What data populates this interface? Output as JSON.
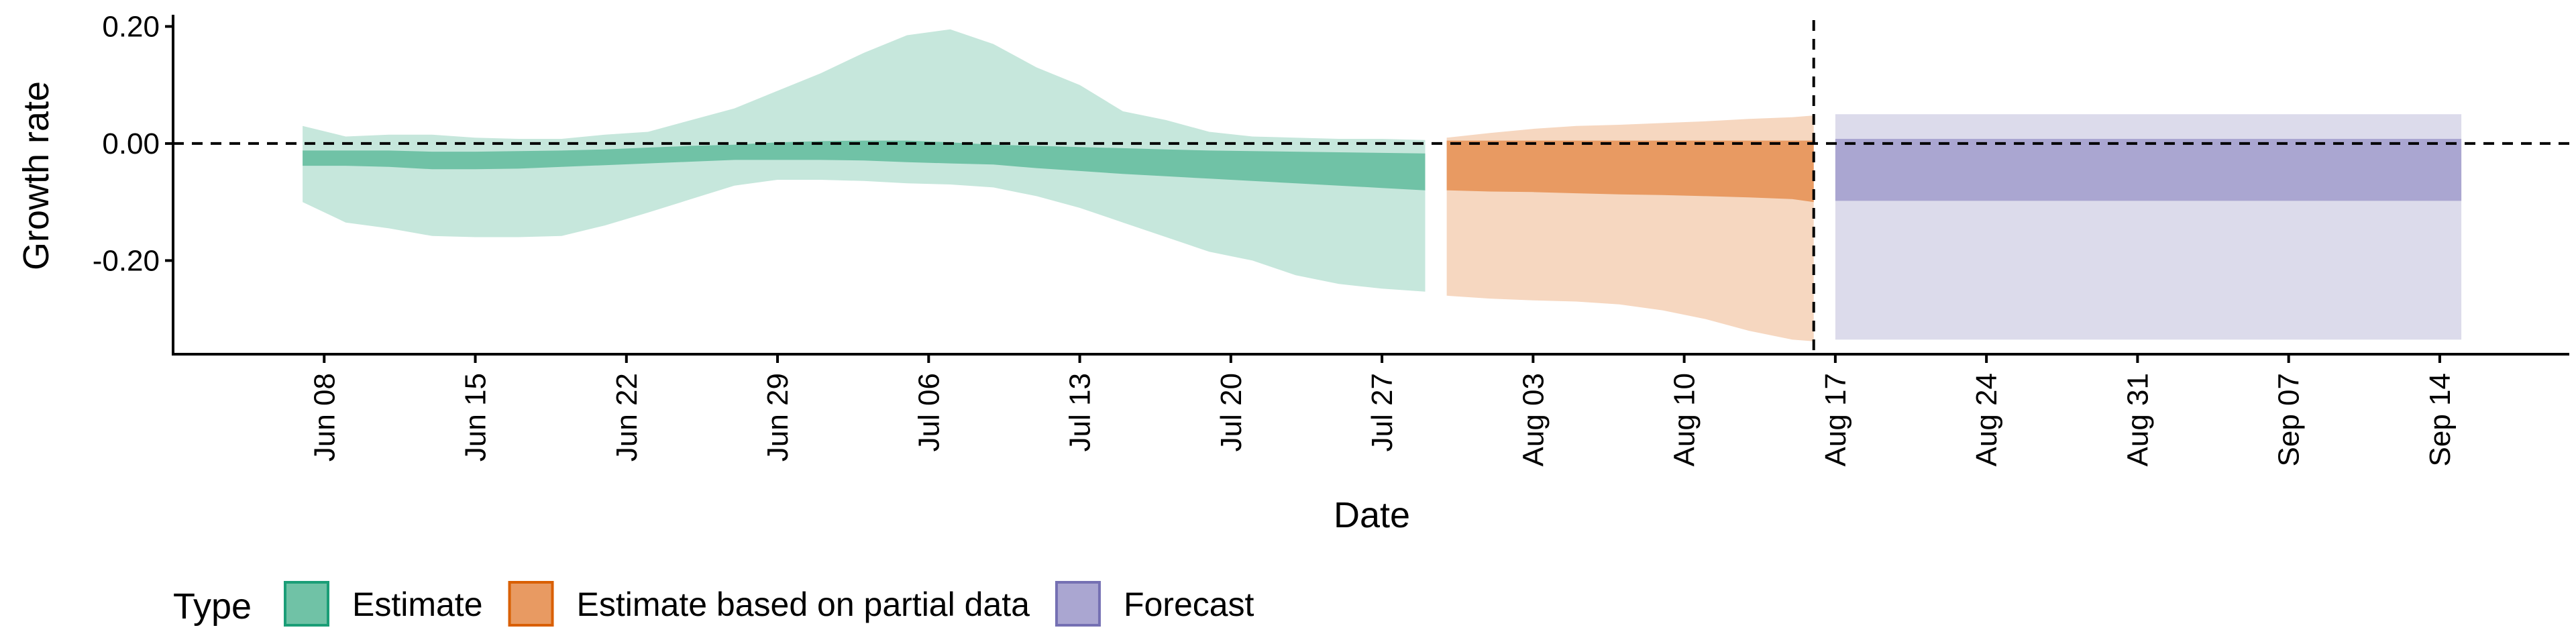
{
  "chart_data": {
    "type": "area",
    "xlabel": "Date",
    "ylabel": "Growth rate",
    "x_ticks": [
      "Jun 08",
      "Jun 15",
      "Jun 22",
      "Jun 29",
      "Jul 06",
      "Jul 13",
      "Jul 20",
      "Jul 27",
      "Aug 03",
      "Aug 10",
      "Aug 17",
      "Aug 24",
      "Aug 31",
      "Sep 07",
      "Sep 14"
    ],
    "y_ticks": [
      0.2,
      0.0,
      -0.2
    ],
    "y_tick_labels": [
      "0.20",
      "0.00",
      "-0.20"
    ],
    "ylim": [
      -0.36,
      0.22
    ],
    "xlim": [
      "2020-06-01",
      "2020-09-20"
    ],
    "reference_lines": {
      "y": 0.0,
      "x": "2020-08-16",
      "style": "dashed"
    },
    "legend": {
      "title": "Type",
      "position": "bottom-left",
      "entries": [
        {
          "label": "Estimate",
          "color": "#1b9e77"
        },
        {
          "label": "Estimate based on partial data",
          "color": "#d95f02"
        },
        {
          "label": "Forecast",
          "color": "#7570b3"
        }
      ]
    },
    "series": [
      {
        "name": "Estimate",
        "color": "#1b9e77",
        "outer_fill": "#c6e7dc",
        "inner_fill": "#70c2a6",
        "x": [
          "2020-06-07",
          "2020-06-09",
          "2020-06-11",
          "2020-06-13",
          "2020-06-15",
          "2020-06-17",
          "2020-06-19",
          "2020-06-21",
          "2020-06-23",
          "2020-06-25",
          "2020-06-27",
          "2020-06-29",
          "2020-07-01",
          "2020-07-03",
          "2020-07-05",
          "2020-07-07",
          "2020-07-09",
          "2020-07-11",
          "2020-07-13",
          "2020-07-15",
          "2020-07-17",
          "2020-07-19",
          "2020-07-21",
          "2020-07-23",
          "2020-07-25",
          "2020-07-27",
          "2020-07-29"
        ],
        "outer_upper": [
          0.03,
          0.012,
          0.015,
          0.015,
          0.01,
          0.008,
          0.008,
          0.015,
          0.02,
          0.04,
          0.06,
          0.09,
          0.12,
          0.155,
          0.185,
          0.195,
          0.17,
          0.13,
          0.1,
          0.055,
          0.04,
          0.02,
          0.012,
          0.01,
          0.008,
          0.008,
          0.006
        ],
        "inner_upper": [
          -0.012,
          -0.012,
          -0.012,
          -0.014,
          -0.014,
          -0.013,
          -0.012,
          -0.01,
          -0.007,
          -0.004,
          -0.002,
          0.002,
          0.004,
          0.005,
          0.005,
          0.002,
          -0.002,
          -0.004,
          -0.006,
          -0.008,
          -0.01,
          -0.012,
          -0.013,
          -0.014,
          -0.015,
          -0.016,
          -0.017
        ],
        "inner_lower": [
          -0.038,
          -0.038,
          -0.04,
          -0.044,
          -0.044,
          -0.043,
          -0.04,
          -0.037,
          -0.034,
          -0.031,
          -0.028,
          -0.028,
          -0.028,
          -0.029,
          -0.032,
          -0.034,
          -0.036,
          -0.042,
          -0.047,
          -0.052,
          -0.056,
          -0.06,
          -0.064,
          -0.068,
          -0.072,
          -0.076,
          -0.08
        ],
        "outer_lower": [
          -0.1,
          -0.135,
          -0.145,
          -0.158,
          -0.16,
          -0.16,
          -0.158,
          -0.14,
          -0.118,
          -0.095,
          -0.072,
          -0.062,
          -0.062,
          -0.064,
          -0.068,
          -0.07,
          -0.075,
          -0.09,
          -0.11,
          -0.135,
          -0.16,
          -0.185,
          -0.2,
          -0.225,
          -0.24,
          -0.248,
          -0.253
        ]
      },
      {
        "name": "Estimate based on partial data",
        "color": "#d95f02",
        "outer_fill": "#f6d7c0",
        "inner_fill": "#e89a62",
        "x": [
          "2020-07-30",
          "2020-08-01",
          "2020-08-03",
          "2020-08-05",
          "2020-08-07",
          "2020-08-09",
          "2020-08-11",
          "2020-08-13",
          "2020-08-15",
          "2020-08-16"
        ],
        "outer_upper": [
          0.01,
          0.018,
          0.025,
          0.03,
          0.032,
          0.035,
          0.038,
          0.042,
          0.045,
          0.048
        ],
        "inner_upper": [
          0.005,
          0.005,
          0.005,
          0.005,
          0.005,
          0.005,
          0.005,
          0.005,
          0.005,
          0.005
        ],
        "inner_lower": [
          -0.08,
          -0.082,
          -0.083,
          -0.085,
          -0.087,
          -0.088,
          -0.09,
          -0.092,
          -0.095,
          -0.1
        ],
        "outer_lower": [
          -0.26,
          -0.265,
          -0.268,
          -0.27,
          -0.275,
          -0.285,
          -0.3,
          -0.32,
          -0.335,
          -0.338
        ]
      },
      {
        "name": "Forecast",
        "color": "#7570b3",
        "outer_fill": "#dcdbeb",
        "inner_fill": "#aaa6d1",
        "x": [
          "2020-08-17",
          "2020-09-15"
        ],
        "outer_upper": [
          0.05,
          0.05
        ],
        "inner_upper": [
          0.008,
          0.008
        ],
        "inner_lower": [
          -0.098,
          -0.098
        ],
        "outer_lower": [
          -0.335,
          -0.335
        ]
      }
    ]
  }
}
